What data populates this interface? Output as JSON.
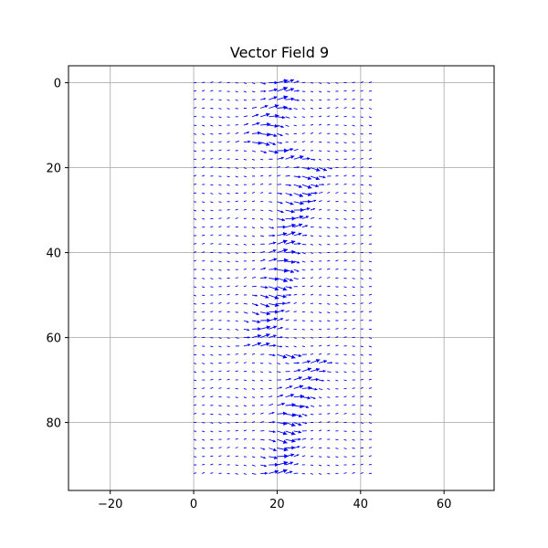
{
  "chart_data": {
    "type": "quiver",
    "title": "Vector Field 9",
    "xlabel": "",
    "ylabel": "",
    "xlim": [
      -30,
      72
    ],
    "ylim": [
      96,
      -4
    ],
    "y_inverted": true,
    "grid": true,
    "x_ticks": [
      -20,
      0,
      20,
      40,
      60
    ],
    "y_ticks": [
      0,
      20,
      40,
      60,
      80
    ],
    "x_tick_labels": [
      "−20",
      "0",
      "20",
      "40",
      "60"
    ],
    "y_tick_labels": [
      "0",
      "20",
      "40",
      "60",
      "80"
    ],
    "arrow_color": "#0000ff",
    "grid_x": {
      "start": 0,
      "stop": 42,
      "step": 2
    },
    "grid_y": {
      "start": 0,
      "stop": 92,
      "step": 2
    },
    "field_description": "Flow concentrated along two bright vertical lines separated by a diagonal shift; largest vectors trace a zig-zag band from x≈14 to x≈28 repeating with period ≈46 in y; vectors point mostly rightward (+x) with small vertical components; magnitude decays away from the band.",
    "band_centers": [
      {
        "y": 0,
        "x": 20
      },
      {
        "y": 4,
        "x": 20
      },
      {
        "y": 8,
        "x": 17
      },
      {
        "y": 14,
        "x": 15
      },
      {
        "y": 20,
        "x": 28
      },
      {
        "y": 26,
        "x": 25
      },
      {
        "y": 32,
        "x": 23
      },
      {
        "y": 38,
        "x": 21
      },
      {
        "y": 44,
        "x": 20
      },
      {
        "y": 50,
        "x": 18
      },
      {
        "y": 56,
        "x": 16
      },
      {
        "y": 62,
        "x": 15
      },
      {
        "y": 66,
        "x": 28
      },
      {
        "y": 72,
        "x": 25
      },
      {
        "y": 78,
        "x": 22
      },
      {
        "y": 84,
        "x": 21
      },
      {
        "y": 88,
        "x": 20
      },
      {
        "y": 92,
        "x": 19
      }
    ]
  }
}
